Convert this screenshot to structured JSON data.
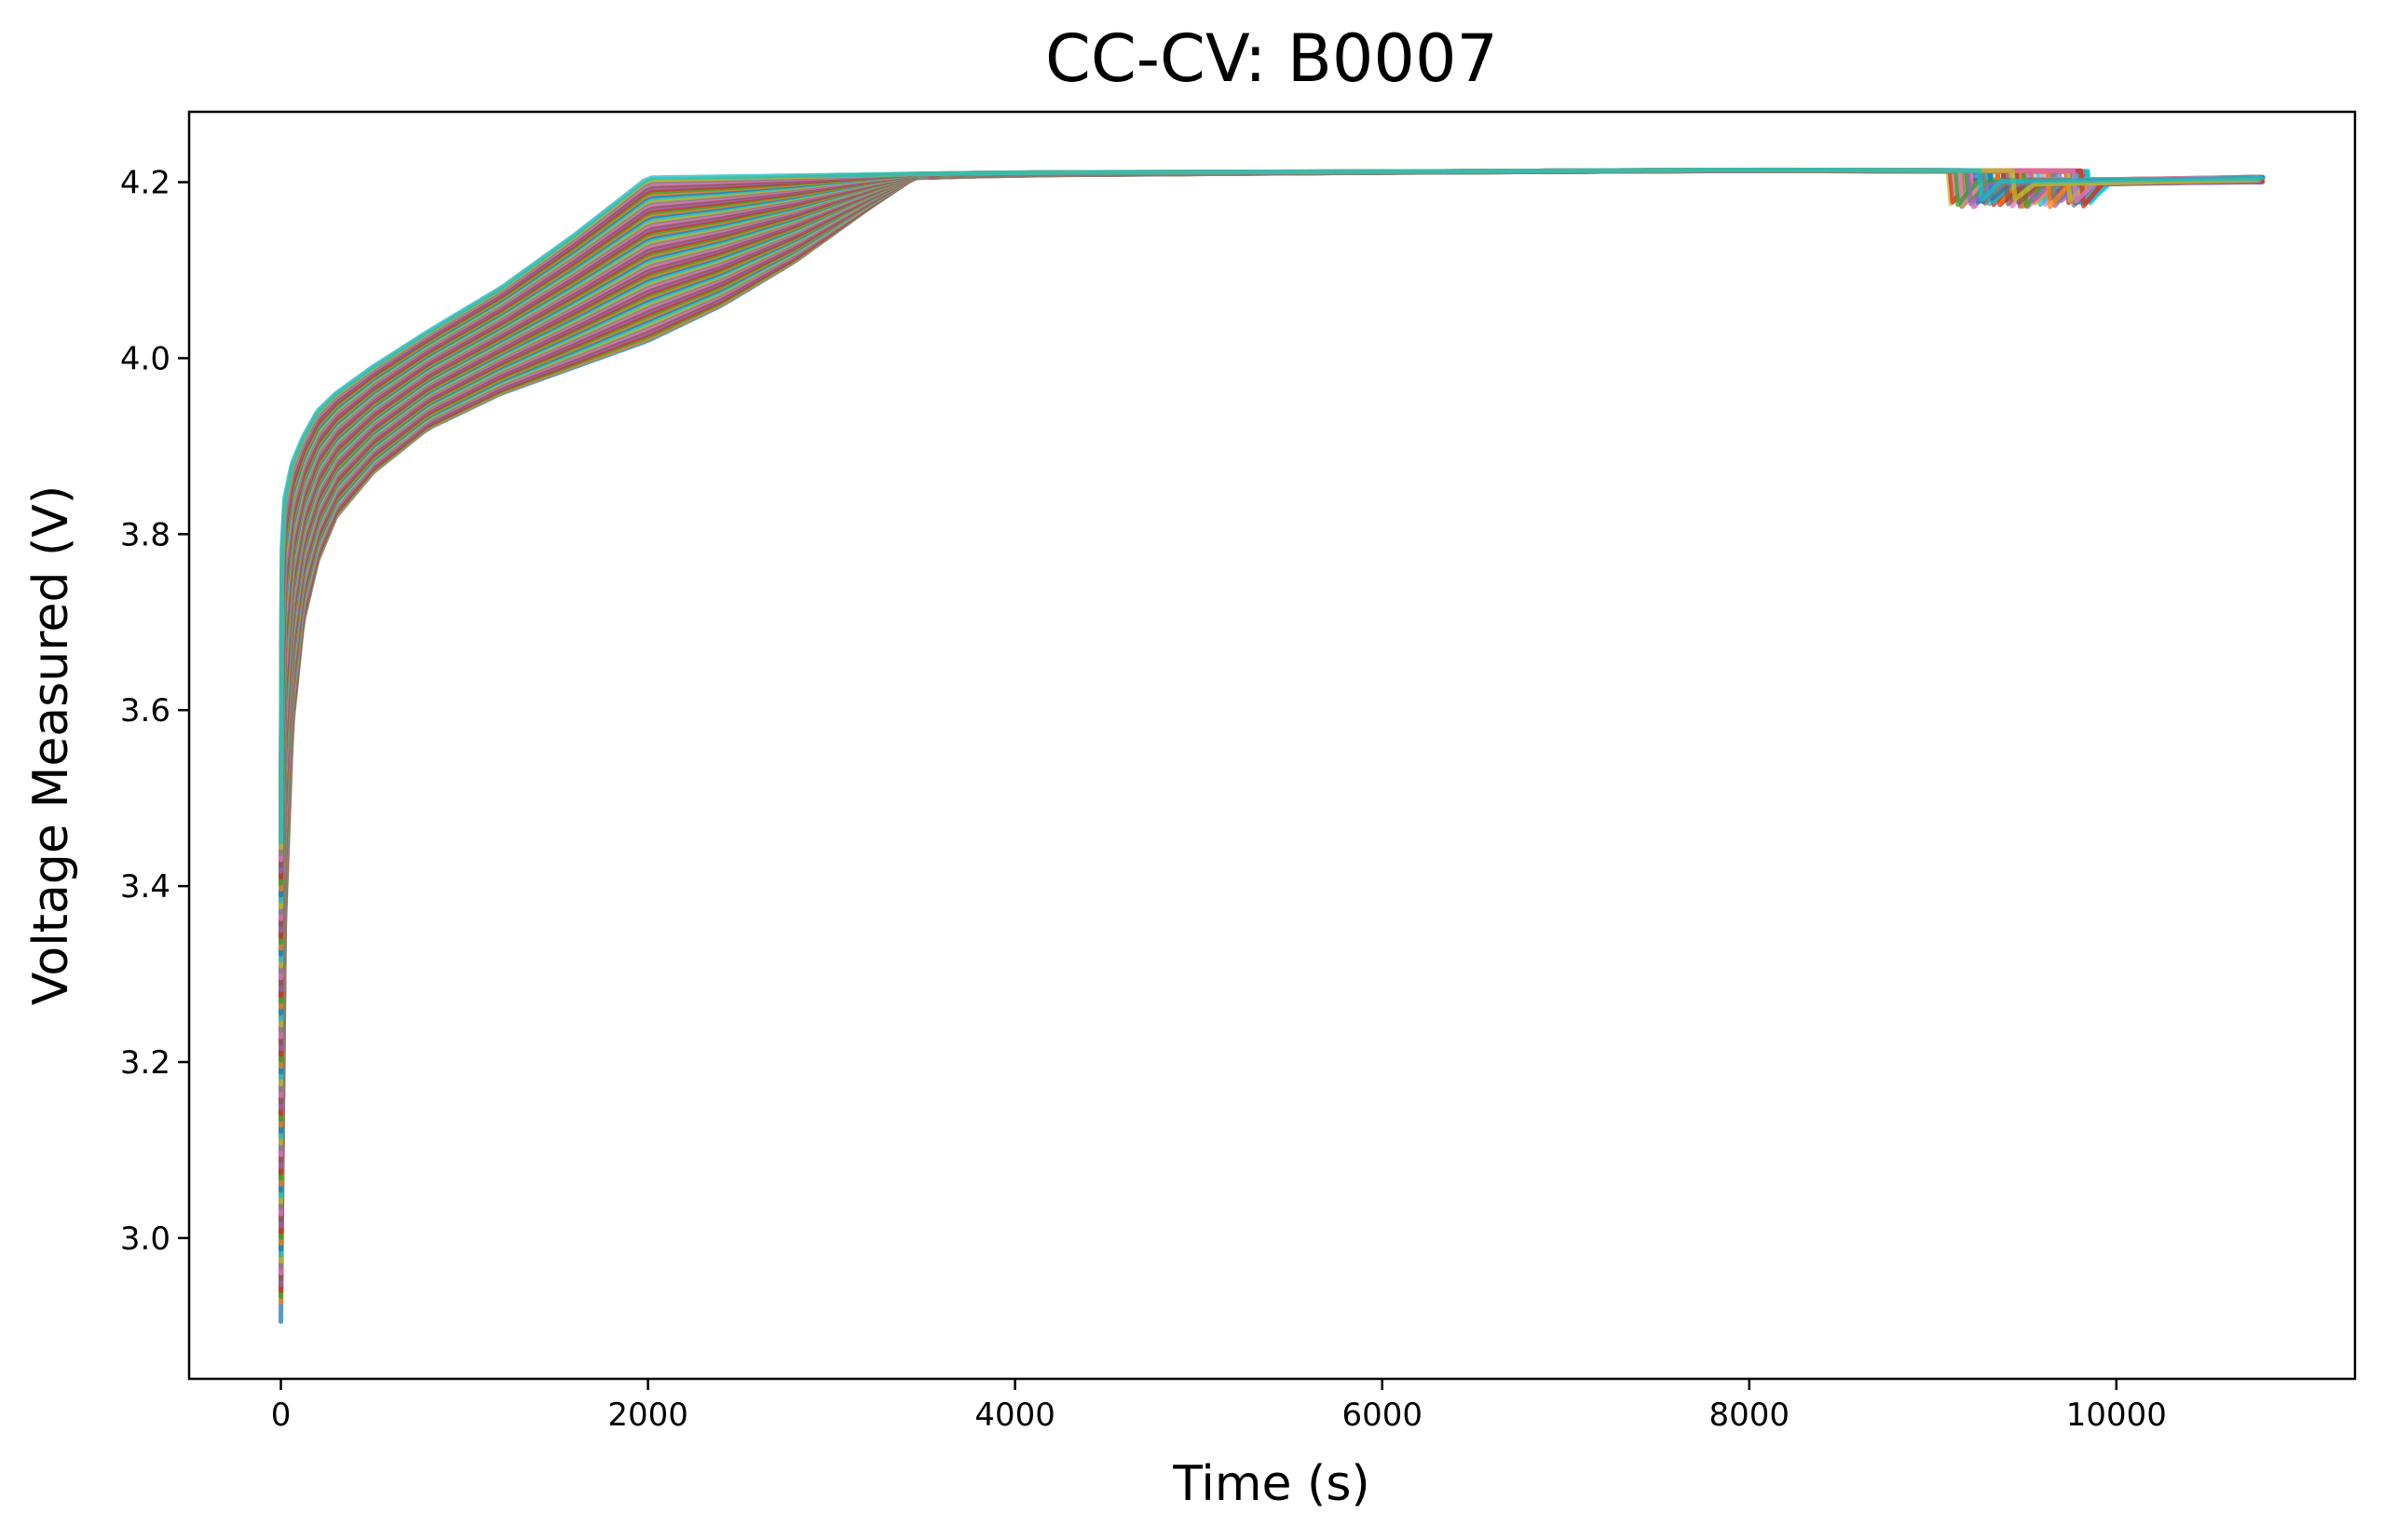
{
  "chart_data": {
    "type": "line",
    "title": "CC-CV: B0007",
    "xlabel": "Time (s)",
    "ylabel": "Voltage Measured (V)",
    "xlim": [
      -500,
      11300
    ],
    "ylim": [
      2.84,
      4.28
    ],
    "xticks": [
      0,
      2000,
      4000,
      6000,
      8000,
      10000
    ],
    "yticks": [
      3.0,
      3.2,
      3.4,
      3.6,
      3.8,
      4.0,
      4.2
    ],
    "grid": false,
    "legend": "none",
    "series_count": 80,
    "colors": [
      "#1f77b4",
      "#ff7f0e",
      "#2ca02c",
      "#d62728",
      "#9467bd",
      "#8c564b",
      "#e377c2",
      "#7f7f7f",
      "#bcbd22",
      "#17becf"
    ],
    "envelope": {
      "description_points": "representative shape of charging curves; cycles shift from slowest to fastest",
      "slowest": {
        "x": [
          0,
          20,
          60,
          120,
          200,
          300,
          500,
          800,
          1200,
          1600,
          2000,
          2400,
          2800,
          3200,
          3450,
          4000,
          6000,
          8000,
          9800
        ],
        "y": [
          2.92,
          3.35,
          3.58,
          3.7,
          3.77,
          3.82,
          3.87,
          3.92,
          3.96,
          3.99,
          4.02,
          4.06,
          4.11,
          4.17,
          4.205,
          4.208,
          4.211,
          4.213,
          4.212
        ]
      },
      "fastest": {
        "x": [
          0,
          5,
          20,
          60,
          120,
          200,
          300,
          500,
          800,
          1200,
          1600,
          2000,
          4000,
          6000,
          8000,
          9800
        ],
        "y": [
          3.45,
          3.78,
          3.84,
          3.88,
          3.91,
          3.94,
          3.96,
          3.99,
          4.03,
          4.08,
          4.14,
          4.205,
          4.211,
          4.212,
          4.214,
          4.213
        ]
      }
    },
    "tail": {
      "end_time_min": 8820,
      "end_time_max": 9850,
      "dip_voltage": 4.172,
      "settle_voltage": 4.2,
      "last_time": 10800
    }
  }
}
